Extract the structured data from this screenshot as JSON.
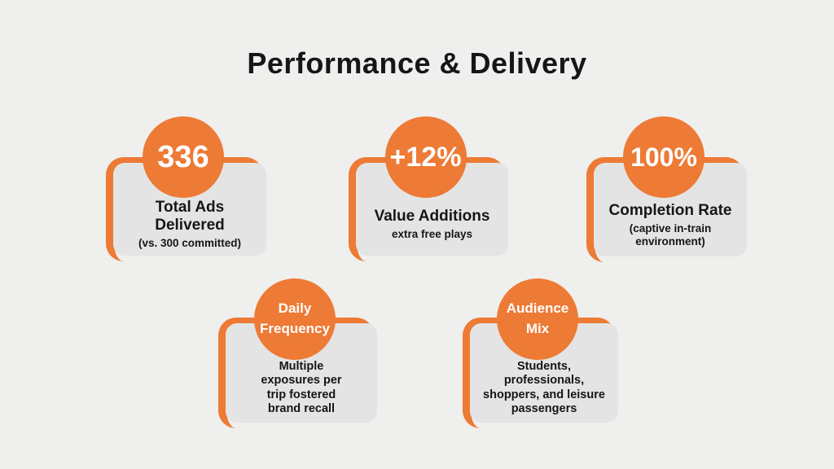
{
  "slide": {
    "title": "Performance & Delivery"
  },
  "colors": {
    "accent": "#ED7A35",
    "card-bg": "#E4E4E4",
    "page-bg": "#EFEFED",
    "text": "#161616",
    "circle-text": "#FFFFFF"
  },
  "cards": [
    {
      "circle_text": "336",
      "title": "Total Ads\nDelivered",
      "subtitle": "(vs. 300 committed)"
    },
    {
      "circle_text": "+12%",
      "title": "Value Additions",
      "subtitle": "extra free plays"
    },
    {
      "circle_text": "100%",
      "title": "Completion Rate",
      "subtitle": "(captive in-train\nenvironment)"
    },
    {
      "circle_text": "Daily\nFrequency",
      "title": "",
      "subtitle": "Multiple\nexposures per\ntrip fostered\nbrand recall"
    },
    {
      "circle_text": "Audience\nMix",
      "title": "",
      "subtitle": "Students,\nprofessionals,\nshoppers, and leisure\npassengers"
    }
  ]
}
